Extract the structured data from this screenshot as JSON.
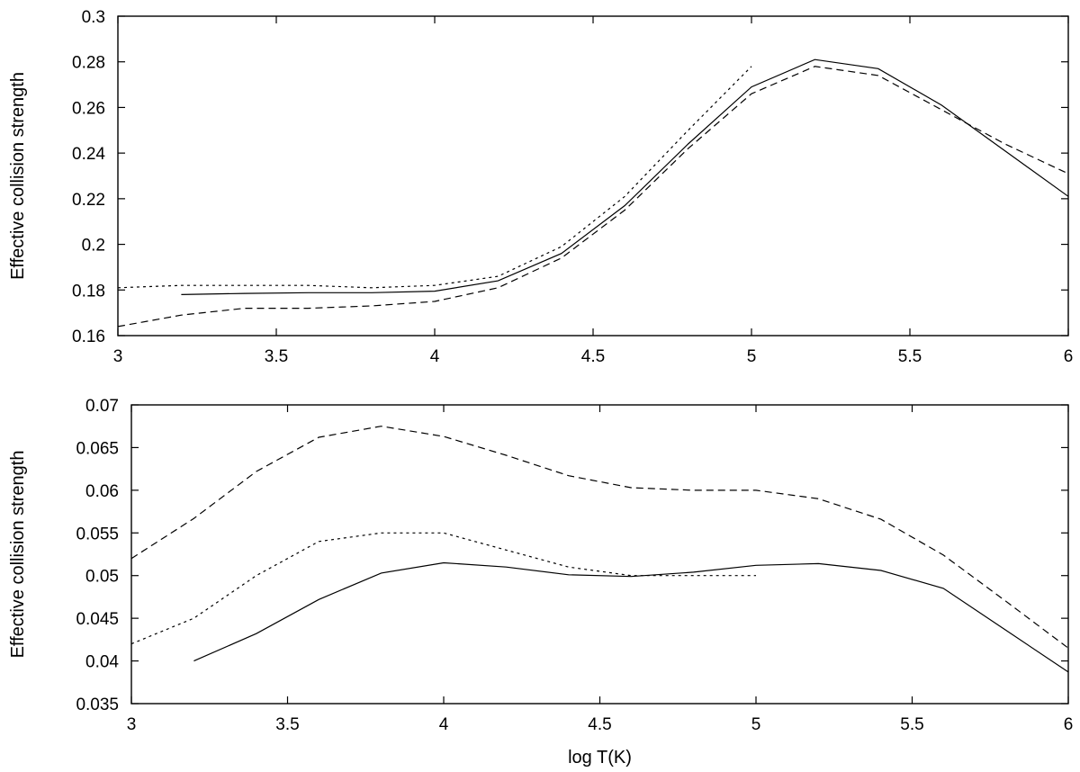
{
  "chart_data": [
    {
      "type": "line",
      "xlabel": "",
      "ylabel": "Effective collision strength",
      "xlim": [
        3,
        6
      ],
      "ylim": [
        0.16,
        0.3
      ],
      "xticks": [
        "3",
        "3.5",
        "4",
        "4.5",
        "5",
        "5.5",
        "6"
      ],
      "yticks": [
        "0.16",
        "0.18",
        "0.2",
        "0.22",
        "0.24",
        "0.26",
        "0.28",
        "0.3"
      ],
      "grid": false,
      "series": [
        {
          "style": "solid",
          "x": [
            3.2,
            3.4,
            3.6,
            3.8,
            4.0,
            4.2,
            4.4,
            4.6,
            4.8,
            5.0,
            5.2,
            5.4,
            5.6,
            5.8,
            6.0
          ],
          "y": [
            0.178,
            0.1785,
            0.1788,
            0.1788,
            0.1795,
            0.184,
            0.196,
            0.217,
            0.244,
            0.269,
            0.281,
            0.277,
            0.261,
            0.241,
            0.221
          ]
        },
        {
          "style": "dashed",
          "x": [
            3.0,
            3.2,
            3.4,
            3.6,
            3.8,
            4.0,
            4.2,
            4.4,
            4.6,
            4.8,
            5.0,
            5.2,
            5.4,
            5.6,
            5.8,
            6.0
          ],
          "y": [
            0.164,
            0.169,
            0.172,
            0.172,
            0.173,
            0.175,
            0.181,
            0.194,
            0.215,
            0.242,
            0.266,
            0.278,
            0.274,
            0.259,
            0.244,
            0.231
          ]
        },
        {
          "style": "dotted",
          "x": [
            3.0,
            3.2,
            3.4,
            3.6,
            3.8,
            4.0,
            4.2,
            4.4,
            4.6,
            4.8,
            5.0
          ],
          "y": [
            0.181,
            0.182,
            0.182,
            0.182,
            0.181,
            0.182,
            0.186,
            0.199,
            0.221,
            0.25,
            0.278
          ]
        }
      ]
    },
    {
      "type": "line",
      "xlabel": "log T(K)",
      "ylabel": "Effective collision strength",
      "xlim": [
        3,
        6
      ],
      "ylim": [
        0.035,
        0.07
      ],
      "xticks": [
        "3",
        "3.5",
        "4",
        "4.5",
        "5",
        "5.5",
        "6"
      ],
      "yticks": [
        "0.035",
        "0.04",
        "0.045",
        "0.05",
        "0.055",
        "0.06",
        "0.065",
        "0.07"
      ],
      "grid": false,
      "series": [
        {
          "style": "solid",
          "x": [
            3.2,
            3.4,
            3.6,
            3.8,
            4.0,
            4.2,
            4.4,
            4.6,
            4.8,
            5.0,
            5.2,
            5.4,
            5.6,
            5.8,
            6.0
          ],
          "y": [
            0.04,
            0.0432,
            0.0472,
            0.0503,
            0.0515,
            0.051,
            0.0501,
            0.0499,
            0.0504,
            0.0512,
            0.0514,
            0.0506,
            0.0485,
            0.0436,
            0.0387
          ]
        },
        {
          "style": "dashed",
          "x": [
            3.0,
            3.2,
            3.4,
            3.6,
            3.8,
            4.0,
            4.2,
            4.4,
            4.6,
            4.8,
            5.0,
            5.2,
            5.4,
            5.6,
            5.8,
            6.0
          ],
          "y": [
            0.052,
            0.0567,
            0.0622,
            0.0662,
            0.0675,
            0.0663,
            0.0641,
            0.0617,
            0.0603,
            0.06,
            0.06,
            0.059,
            0.0566,
            0.0524,
            0.047,
            0.0415
          ]
        },
        {
          "style": "dotted",
          "x": [
            3.0,
            3.2,
            3.4,
            3.6,
            3.8,
            4.0,
            4.2,
            4.4,
            4.6,
            4.8,
            5.0
          ],
          "y": [
            0.042,
            0.045,
            0.05,
            0.054,
            0.055,
            0.055,
            0.053,
            0.051,
            0.05,
            0.05,
            0.05
          ]
        }
      ]
    }
  ]
}
